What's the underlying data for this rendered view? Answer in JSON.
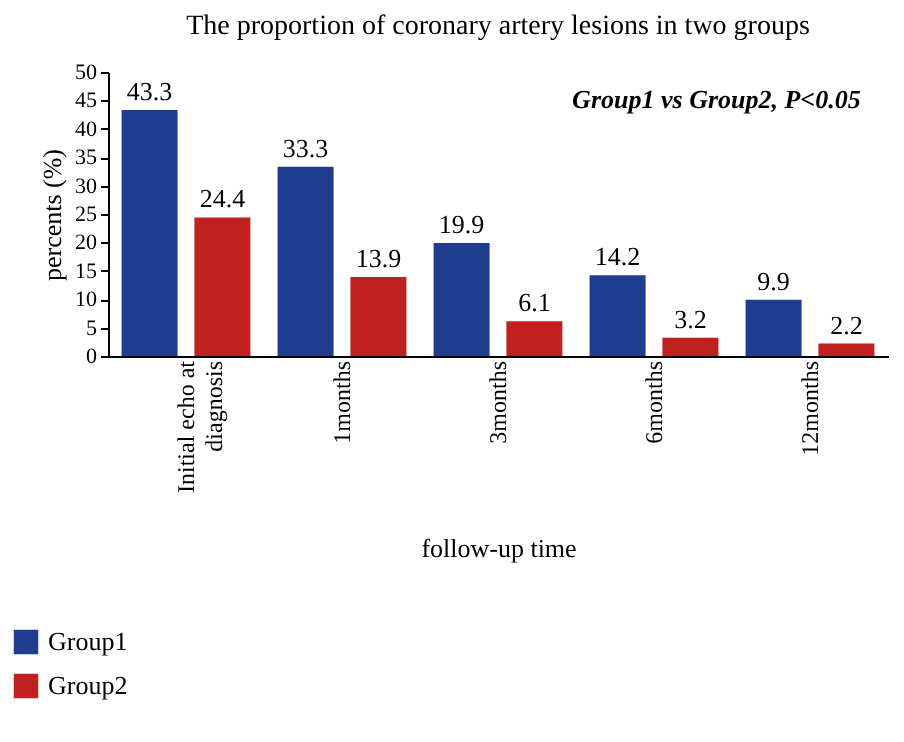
{
  "chart_data": {
    "type": "bar",
    "title": "The proportion of coronary artery lesions in two groups",
    "xlabel": "follow-up time",
    "ylabel": "percents (%)",
    "annotations": [
      "Group1 vs Group2, P<0.05"
    ],
    "categories": [
      "Initial echo at diagnosis",
      "1months",
      "3months",
      "6months",
      "12months"
    ],
    "series": [
      {
        "name": "Group1",
        "color": "#1f3e8f",
        "values": [
          43.3,
          33.3,
          19.9,
          14.2,
          9.9
        ]
      },
      {
        "name": "Group2",
        "color": "#c0201e",
        "values": [
          24.4,
          13.9,
          6.1,
          3.2,
          2.2
        ]
      }
    ],
    "ylim": [
      0,
      50
    ],
    "yticks": [
      0,
      5,
      10,
      15,
      20,
      25,
      30,
      35,
      40,
      45,
      50
    ],
    "grid": false,
    "legend": "bottom left",
    "data_labels": true
  }
}
